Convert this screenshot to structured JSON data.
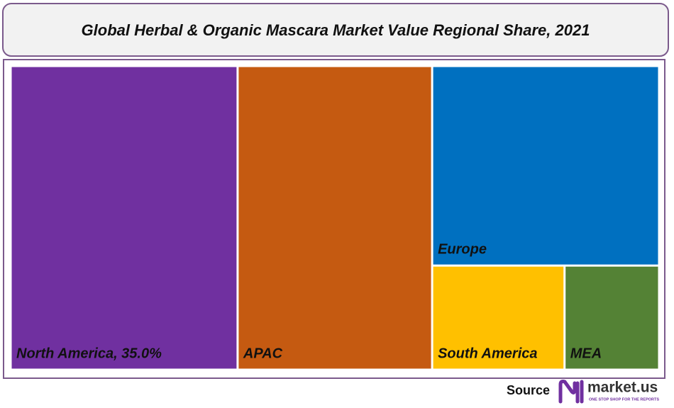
{
  "chart_data": {
    "type": "treemap",
    "title": "Global Herbal & Organic Mascara Market Value Regional Share, 2021",
    "categories": [
      "North America, 35.0%",
      "APAC",
      "Europe",
      "South America",
      "MEA"
    ],
    "values": [
      35,
      30,
      23,
      7,
      5
    ],
    "colors": [
      "#7030a0",
      "#c55a11",
      "#0070c0",
      "#ffc000",
      "#548235"
    ]
  },
  "source": {
    "label": "Source",
    "brand": "market.us",
    "tagline": "ONE STOP SHOP FOR THE REPORTS"
  }
}
